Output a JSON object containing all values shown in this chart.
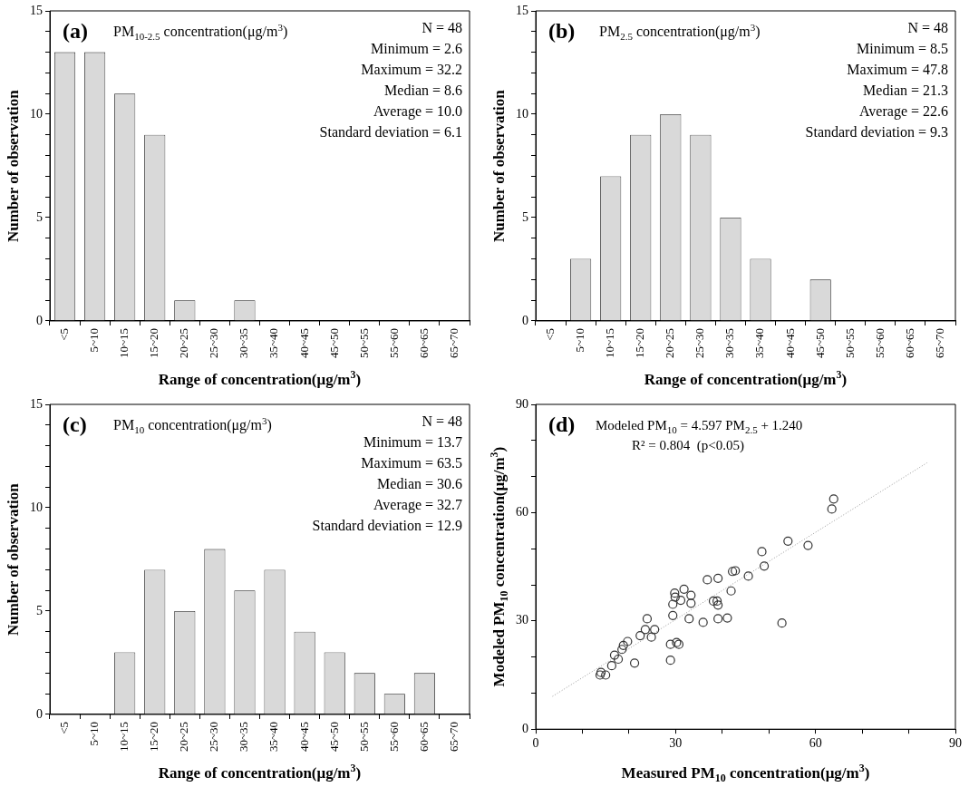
{
  "chart_data": [
    {
      "type": "bar",
      "title": "PM$_{10-2.5}$ concentration(μg/m$^{3}$)",
      "xlabel": "Range of concentration(μg/m$^{3}$)",
      "ylabel": "Number of observation",
      "categories": [
        "<5",
        "5~10",
        "10~15",
        "15~20",
        "20~25",
        "25~30",
        "30~35",
        "35~40",
        "40~45",
        "45~50",
        "50~55",
        "55~60",
        "60~65",
        "65~70"
      ],
      "values": [
        13,
        13,
        11,
        9,
        1,
        0,
        1,
        0,
        0,
        0,
        0,
        0,
        0,
        0
      ],
      "color": "#d9d9d9",
      "ylim": [
        0,
        15
      ],
      "yticks": [
        0,
        {
          "value": 1,
          "label": null
        },
        {
          "value": 2,
          "label": null
        },
        {
          "value": 3,
          "label": null
        },
        {
          "value": 4,
          "label": null
        },
        5,
        {
          "value": 6,
          "label": null
        },
        {
          "value": 7,
          "label": null
        },
        {
          "value": 8,
          "label": null
        },
        {
          "value": 9,
          "label": null
        },
        10,
        {
          "value": 11,
          "label": null
        },
        {
          "value": 12,
          "label": null
        },
        {
          "value": 13,
          "label": null
        },
        {
          "value": 14,
          "label": null
        },
        15
      ],
      "annotations": [
        "(a)",
        "N = 48",
        "Minimum = 2.6",
        "Maximum = 32.2",
        "Median = 8.6",
        "Average = 10.0",
        "Standard deviation = 6.1"
      ]
    },
    {
      "type": "bar",
      "title": "PM$_{2.5}$ concentration(μg/m$^{3}$)",
      "xlabel": "Range of concentration(μg/m$^{3}$)",
      "ylabel": "Number of observation",
      "categories": [
        "<5",
        "5~10",
        "10~15",
        "15~20",
        "20~25",
        "25~30",
        "30~35",
        "35~40",
        "40~45",
        "45~50",
        "50~55",
        "55~60",
        "60~65",
        "65~70"
      ],
      "values": [
        0,
        3,
        7,
        9,
        10,
        9,
        5,
        3,
        0,
        2,
        0,
        0,
        0,
        0
      ],
      "color": "#d9d9d9",
      "ylim": [
        0,
        15
      ],
      "yticks": [
        0,
        {
          "value": 1,
          "label": null
        },
        {
          "value": 2,
          "label": null
        },
        {
          "value": 3,
          "label": null
        },
        {
          "value": 4,
          "label": null
        },
        5,
        {
          "value": 6,
          "label": null
        },
        {
          "value": 7,
          "label": null
        },
        {
          "value": 8,
          "label": null
        },
        {
          "value": 9,
          "label": null
        },
        10,
        {
          "value": 11,
          "label": null
        },
        {
          "value": 12,
          "label": null
        },
        {
          "value": 13,
          "label": null
        },
        {
          "value": 14,
          "label": null
        },
        15
      ],
      "annotations": [
        "(b)",
        "N = 48",
        "Minimum = 8.5",
        "Maximum = 47.8",
        "Median = 21.3",
        "Average = 22.6",
        "Standard deviation = 9.3"
      ]
    },
    {
      "type": "bar",
      "title": "PM$_{10}$ concentration(μg/m$^{3}$)",
      "xlabel": "Range of concentration(μg/m$^{3}$)",
      "ylabel": "Number of observation",
      "categories": [
        "<5",
        "5~10",
        "10~15",
        "15~20",
        "20~25",
        "25~30",
        "30~35",
        "35~40",
        "40~45",
        "45~50",
        "50~55",
        "55~60",
        "60~65",
        "65~70"
      ],
      "values": [
        0,
        0,
        3,
        7,
        5,
        8,
        6,
        7,
        4,
        3,
        2,
        1,
        2,
        0
      ],
      "color": "#d9d9d9",
      "ylim": [
        0,
        15
      ],
      "yticks": [
        0,
        {
          "value": 1,
          "label": null
        },
        {
          "value": 2,
          "label": null
        },
        {
          "value": 3,
          "label": null
        },
        {
          "value": 4,
          "label": null
        },
        5,
        {
          "value": 6,
          "label": null
        },
        {
          "value": 7,
          "label": null
        },
        {
          "value": 8,
          "label": null
        },
        {
          "value": 9,
          "label": null
        },
        10,
        {
          "value": 11,
          "label": null
        },
        {
          "value": 12,
          "label": null
        },
        {
          "value": 13,
          "label": null
        },
        {
          "value": 14,
          "label": null
        },
        15
      ],
      "annotations": [
        "(c)",
        "N = 48",
        "Minimum = 13.7",
        "Maximum = 63.5",
        "Median = 30.6",
        "Average = 32.7",
        "Standard deviation = 12.9"
      ]
    },
    {
      "type": "scatter",
      "xlabel": "Measured PM$_{10}$ concentration(μg/m$^{3}$)",
      "ylabel": "Modeled PM$_{10}$ concentration(μg/m$^{3}$)",
      "series": [
        {
          "color": "#333333",
          "marker": "circle",
          "x": [
            13.8,
            14.0,
            15.0,
            16.3,
            16.9,
            17.7,
            18.5,
            18.8,
            19.7,
            21.2,
            22.4,
            23.5,
            23.9,
            24.8,
            25.5,
            28.9,
            28.9,
            29.4,
            29.4,
            29.8,
            29.9,
            30.2,
            30.7,
            31.1,
            31.8,
            32.9,
            33.3,
            33.3,
            35.9,
            36.8,
            38.1,
            38.9,
            39.1,
            39.1,
            39.1,
            41.1,
            41.9,
            42.2,
            42.8,
            45.6,
            48.5,
            49.0,
            52.8,
            54.1,
            58.4,
            63.5,
            63.9
          ],
          "values": [
            15.0,
            15.7,
            15.0,
            17.6,
            20.5,
            19.4,
            22.1,
            23.2,
            24.3,
            18.3,
            25.9,
            27.6,
            30.6,
            25.5,
            27.6,
            23.5,
            19.1,
            31.5,
            34.6,
            37.7,
            36.6,
            24.0,
            23.5,
            35.7,
            38.8,
            30.6,
            37.1,
            34.9,
            29.6,
            41.4,
            35.5,
            35.5,
            41.8,
            34.4,
            30.6,
            30.8,
            38.3,
            43.7,
            43.9,
            42.4,
            49.2,
            45.2,
            29.4,
            52.1,
            50.9,
            61.0,
            63.8
          ]
        },
        {
          "type": "line",
          "color": "#999999",
          "line_style": "dotted",
          "marker": "none",
          "x": [
            3.6,
            83.9
          ],
          "values": [
            9.1,
            73.8
          ]
        }
      ],
      "xlim": [
        0,
        90
      ],
      "xticks": [
        0,
        {
          "value": 10,
          "label": null
        },
        {
          "value": 20,
          "label": null
        },
        30,
        {
          "value": 40,
          "label": null
        },
        {
          "value": 50,
          "label": null
        },
        60,
        {
          "value": 70,
          "label": null
        },
        {
          "value": 80,
          "label": null
        },
        90
      ],
      "ylim": [
        0,
        90
      ],
      "yticks": [
        0,
        {
          "value": 10,
          "label": null
        },
        {
          "value": 20,
          "label": null
        },
        30,
        {
          "value": 40,
          "label": null
        },
        {
          "value": 50,
          "label": null
        },
        60,
        {
          "value": 70,
          "label": null
        },
        {
          "value": 80,
          "label": null
        },
        90
      ],
      "annotations": [
        "(d)",
        "Modeled PM$_{10}$ = 4.597 PM$_{2.5}$ + 1.240",
        "R² = 0.804  (p<0.05)"
      ]
    }
  ]
}
